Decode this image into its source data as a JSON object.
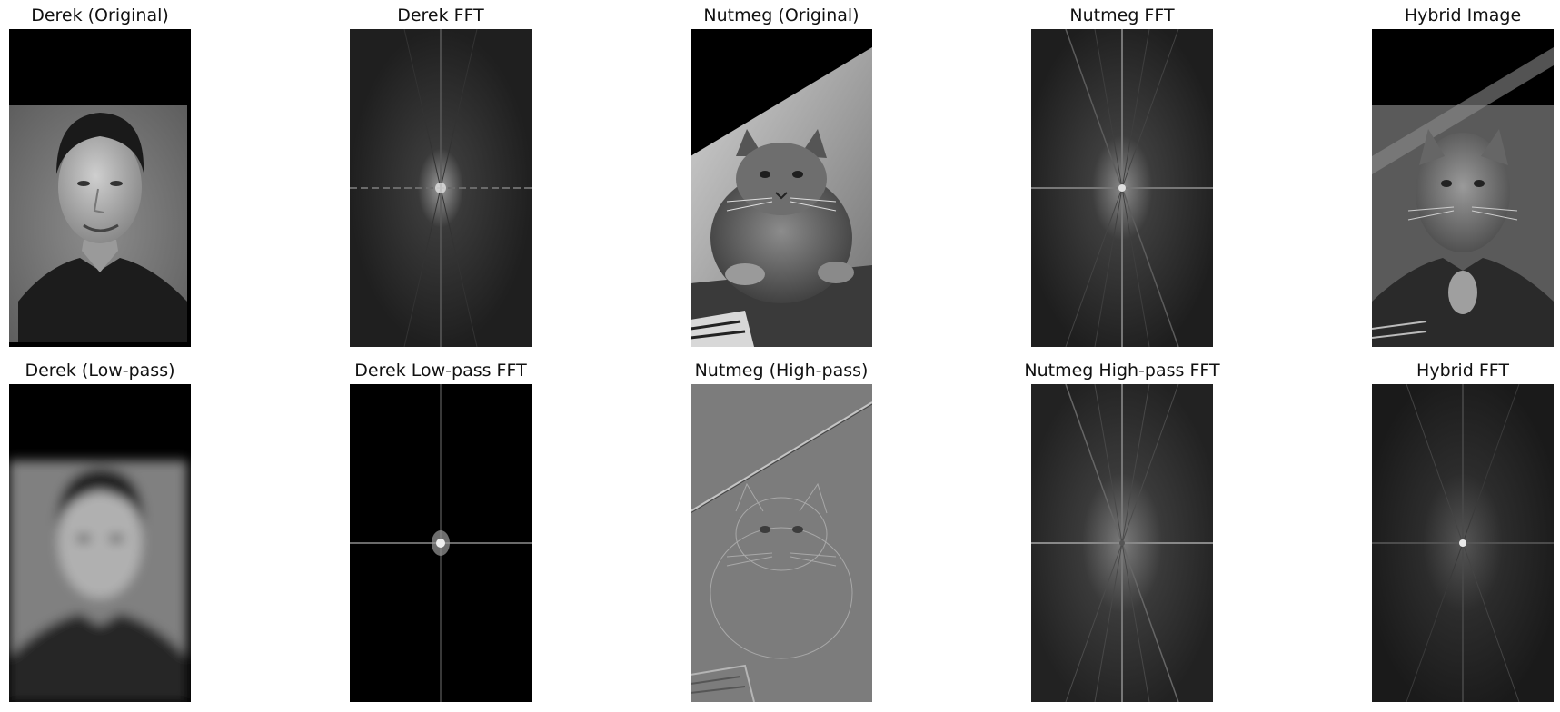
{
  "panels": [
    {
      "id": "derek_original",
      "title": "Derek (Original)"
    },
    {
      "id": "derek_fft",
      "title": "Derek FFT"
    },
    {
      "id": "nutmeg_original",
      "title": "Nutmeg (Original)"
    },
    {
      "id": "nutmeg_fft",
      "title": "Nutmeg FFT"
    },
    {
      "id": "hybrid_image",
      "title": "Hybrid Image"
    },
    {
      "id": "derek_lowpass",
      "title": "Derek (Low-pass)"
    },
    {
      "id": "derek_lowpass_fft",
      "title": "Derek Low-pass FFT"
    },
    {
      "id": "nutmeg_highpass",
      "title": "Nutmeg (High-pass)"
    },
    {
      "id": "nutmeg_highpass_fft",
      "title": "Nutmeg High-pass FFT"
    },
    {
      "id": "hybrid_fft",
      "title": "Hybrid FFT"
    }
  ],
  "colors": {
    "background": "#ffffff",
    "image_black": "#000000",
    "gray_bg": "#7a7a7a",
    "fft_dark": "#1c1c1c"
  }
}
